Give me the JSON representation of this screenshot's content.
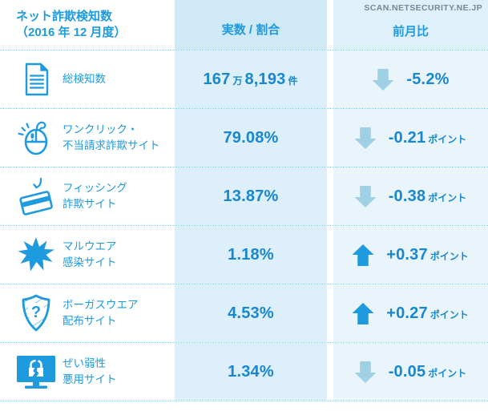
{
  "colors": {
    "accent": "#1e9ade",
    "value_blue": "#1787d0",
    "up_arrow": "#1e9ade",
    "down_arrow": "#9fd0e3",
    "divider": "#8fcbe5",
    "value_header_bg": "#cfe9f7",
    "value_bg": "#ddeffa",
    "change_header_bg": "#def0f9",
    "change_bg": "#eaf5fb",
    "watermark_gray": "#7b8691"
  },
  "watermark": "SCAN.NETSECURITY.NE.JP",
  "table": {
    "header": {
      "title_line1": "ネット詐欺検知数",
      "title_line2": "（2016 年 12 月度）",
      "col_value": "実数 / 割合",
      "col_change": "前月比"
    },
    "rows": [
      {
        "icon": "document-icon",
        "label_lines": [
          "総検知数"
        ],
        "value": "167万8,193件",
        "value_segments": [
          {
            "text": "167",
            "large": true
          },
          {
            "text": "万",
            "large": false
          },
          {
            "text": "8,193",
            "large": true
          },
          {
            "text": "件",
            "large": false
          }
        ],
        "change_direction": "down",
        "change": "-5.2%",
        "change_segments": [
          {
            "text": "-5.2%",
            "large": true
          }
        ]
      },
      {
        "icon": "one-click-mouse-icon",
        "label_lines": [
          "ワンクリック・",
          "不当請求詐欺サイト"
        ],
        "value": "79.08%",
        "value_segments": [
          {
            "text": "79.08%",
            "large": true
          }
        ],
        "change_direction": "down",
        "change": "-0.21ポイント",
        "change_segments": [
          {
            "text": "-0.21",
            "large": true
          },
          {
            "text": "ポイント",
            "large": false
          }
        ]
      },
      {
        "icon": "phishing-card-icon",
        "label_lines": [
          "フィッシング",
          "詐欺サイト"
        ],
        "value": "13.87%",
        "value_segments": [
          {
            "text": "13.87%",
            "large": true
          }
        ],
        "change_direction": "down",
        "change": "-0.38ポイント",
        "change_segments": [
          {
            "text": "-0.38",
            "large": true
          },
          {
            "text": "ポイント",
            "large": false
          }
        ]
      },
      {
        "icon": "malware-burst-icon",
        "label_lines": [
          "マルウエア",
          "感染サイト"
        ],
        "value": "1.18%",
        "value_segments": [
          {
            "text": "1.18%",
            "large": true
          }
        ],
        "change_direction": "up",
        "change": "+0.37ポイント",
        "change_segments": [
          {
            "text": "+0.37",
            "large": true
          },
          {
            "text": "ポイント",
            "large": false
          }
        ]
      },
      {
        "icon": "bogusware-shield-icon",
        "label_lines": [
          "ボーガスウエア",
          "配布サイト"
        ],
        "value": "4.53%",
        "value_segments": [
          {
            "text": "4.53%",
            "large": true
          }
        ],
        "change_direction": "up",
        "change": "+0.27ポイント",
        "change_segments": [
          {
            "text": "+0.27",
            "large": true
          },
          {
            "text": "ポイント",
            "large": false
          }
        ]
      },
      {
        "icon": "vulnerability-monitor-icon",
        "label_lines": [
          "ぜい弱性",
          "悪用サイト"
        ],
        "value": "1.34%",
        "value_segments": [
          {
            "text": "1.34%",
            "large": true
          }
        ],
        "change_direction": "down",
        "change": "-0.05ポイント",
        "change_segments": [
          {
            "text": "-0.05",
            "large": true
          },
          {
            "text": "ポイント",
            "large": false
          }
        ]
      }
    ]
  }
}
